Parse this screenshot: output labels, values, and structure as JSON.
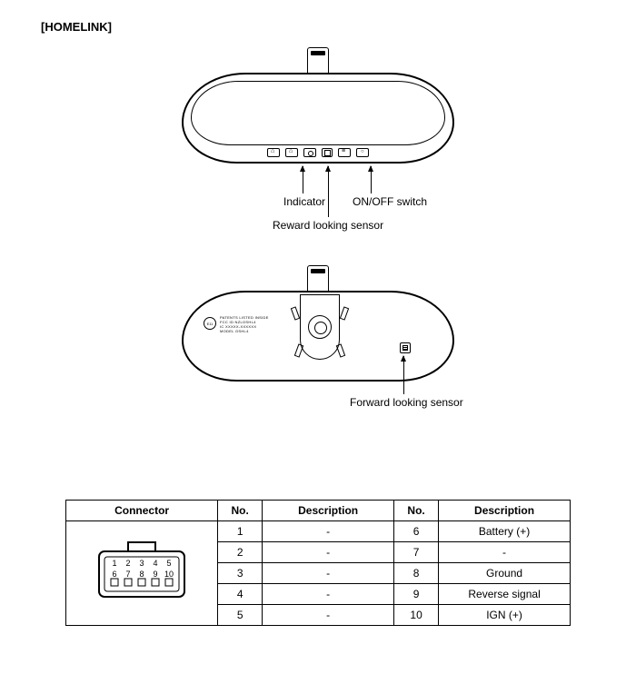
{
  "title": "[HOMELINK]",
  "front": {
    "labels": {
      "indicator": "Indicator",
      "onoff": "ON/OFF switch",
      "rear_sensor": "Reward looking sensor"
    }
  },
  "back": {
    "labels": {
      "fwd_sensor": "Forward looking sensor"
    },
    "cert_text": "PATENTS LISTED INSIDE\nFCC ID  NZLGSHL4\nIC  XXXXX-XXXXXX\nMODEL  GSHL4"
  },
  "connector": {
    "header": {
      "connector": "Connector",
      "no": "No.",
      "description": "Description"
    },
    "pin_numbers_top": [
      "1",
      "2",
      "3",
      "4",
      "5"
    ],
    "pin_numbers_bottom": [
      "6",
      "7",
      "8",
      "9",
      "10"
    ],
    "rows": [
      {
        "no_l": "1",
        "desc_l": "-",
        "no_r": "6",
        "desc_r": "Battery (+)"
      },
      {
        "no_l": "2",
        "desc_l": "-",
        "no_r": "7",
        "desc_r": "-"
      },
      {
        "no_l": "3",
        "desc_l": "-",
        "no_r": "8",
        "desc_r": "Ground"
      },
      {
        "no_l": "4",
        "desc_l": "-",
        "no_r": "9",
        "desc_r": "Reverse signal"
      },
      {
        "no_l": "5",
        "desc_l": "-",
        "no_r": "10",
        "desc_r": "IGN (+)"
      }
    ]
  },
  "colors": {
    "line": "#000000",
    "bg": "#ffffff"
  }
}
